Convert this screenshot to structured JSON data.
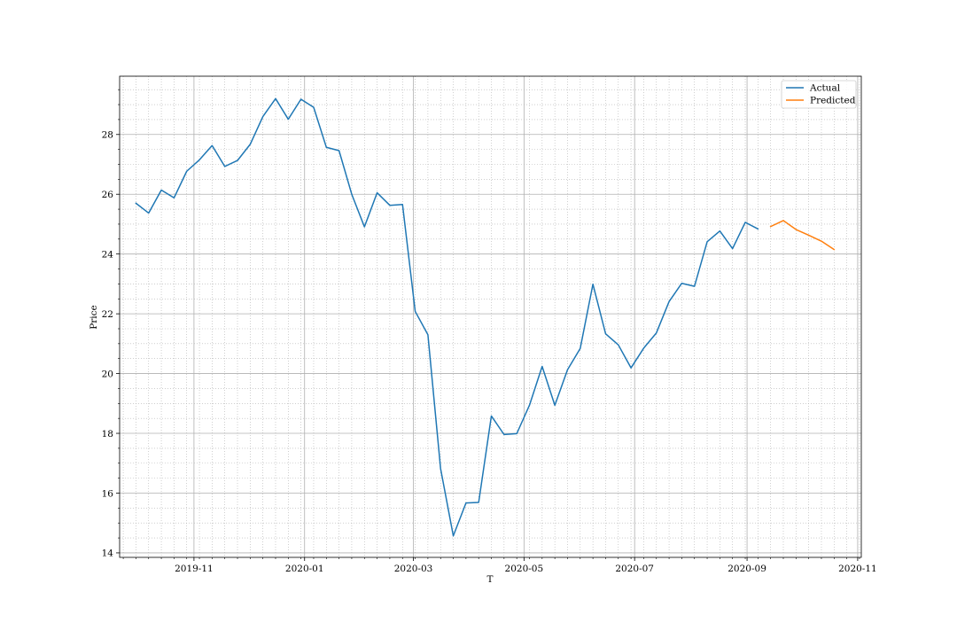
{
  "chart_data": {
    "type": "line",
    "title": "",
    "xlabel": "T",
    "ylabel": "Price",
    "x_ticks": [
      "2019-11",
      "2020-01",
      "2020-03",
      "2020-05",
      "2020-07",
      "2020-09",
      "2020-11"
    ],
    "x_tick_dates": [
      "2019-11-01",
      "2020-01-01",
      "2020-03-01",
      "2020-05-01",
      "2020-07-01",
      "2020-09-01",
      "2020-11-01"
    ],
    "y_ticks": [
      "14",
      "16",
      "18",
      "20",
      "22",
      "24",
      "26",
      "28"
    ],
    "y_tick_values": [
      14,
      16,
      18,
      20,
      22,
      24,
      26,
      28
    ],
    "xlim": [
      "2019-09-21",
      "2020-11-03"
    ],
    "ylim": [
      13.85,
      29.95
    ],
    "grid": "major and minor",
    "legend_position": "top-right",
    "series": [
      {
        "name": "Actual",
        "color": "#1f77b4",
        "x": [
          "2019-09-30",
          "2019-10-07",
          "2019-10-14",
          "2019-10-21",
          "2019-10-28",
          "2019-11-04",
          "2019-11-11",
          "2019-11-18",
          "2019-11-25",
          "2019-12-02",
          "2019-12-09",
          "2019-12-16",
          "2019-12-23",
          "2019-12-30",
          "2020-01-06",
          "2020-01-13",
          "2020-01-20",
          "2020-01-27",
          "2020-02-03",
          "2020-02-10",
          "2020-02-17",
          "2020-02-24",
          "2020-03-02",
          "2020-03-09",
          "2020-03-16",
          "2020-03-23",
          "2020-03-30",
          "2020-04-06",
          "2020-04-13",
          "2020-04-20",
          "2020-04-27",
          "2020-05-04",
          "2020-05-11",
          "2020-05-18",
          "2020-05-25",
          "2020-06-01",
          "2020-06-08",
          "2020-06-15",
          "2020-06-22",
          "2020-06-29",
          "2020-07-06",
          "2020-07-13",
          "2020-07-20",
          "2020-07-27",
          "2020-08-03",
          "2020-08-10",
          "2020-08-17",
          "2020-08-24",
          "2020-08-31"
        ],
        "values": [
          25.7,
          25.37,
          26.14,
          25.88,
          26.77,
          27.15,
          27.63,
          26.93,
          27.13,
          27.67,
          28.6,
          29.2,
          28.51,
          29.18,
          28.91,
          27.57,
          27.46,
          26.0,
          24.91,
          26.05,
          25.63,
          25.66,
          22.08,
          21.3,
          16.82,
          14.57,
          15.67,
          15.69,
          18.58,
          17.96,
          17.99,
          18.94,
          20.24,
          18.94,
          20.13,
          20.84,
          22.99,
          21.33,
          20.96,
          20.19,
          20.85,
          21.36,
          22.41,
          23.02,
          22.92,
          24.41,
          24.77,
          24.18,
          25.06
        ]
      },
      {
        "name": "Predicted",
        "color": "#ff7f0e",
        "x": [
          "2020-09-14",
          "2020-09-21",
          "2020-09-28",
          "2020-10-05",
          "2020-10-12",
          "2020-10-19"
        ],
        "values": [
          24.92,
          25.12,
          24.82,
          24.63,
          24.43,
          24.15
        ]
      }
    ],
    "actual_last_point": {
      "x": "2020-09-07",
      "value": 24.84
    }
  }
}
